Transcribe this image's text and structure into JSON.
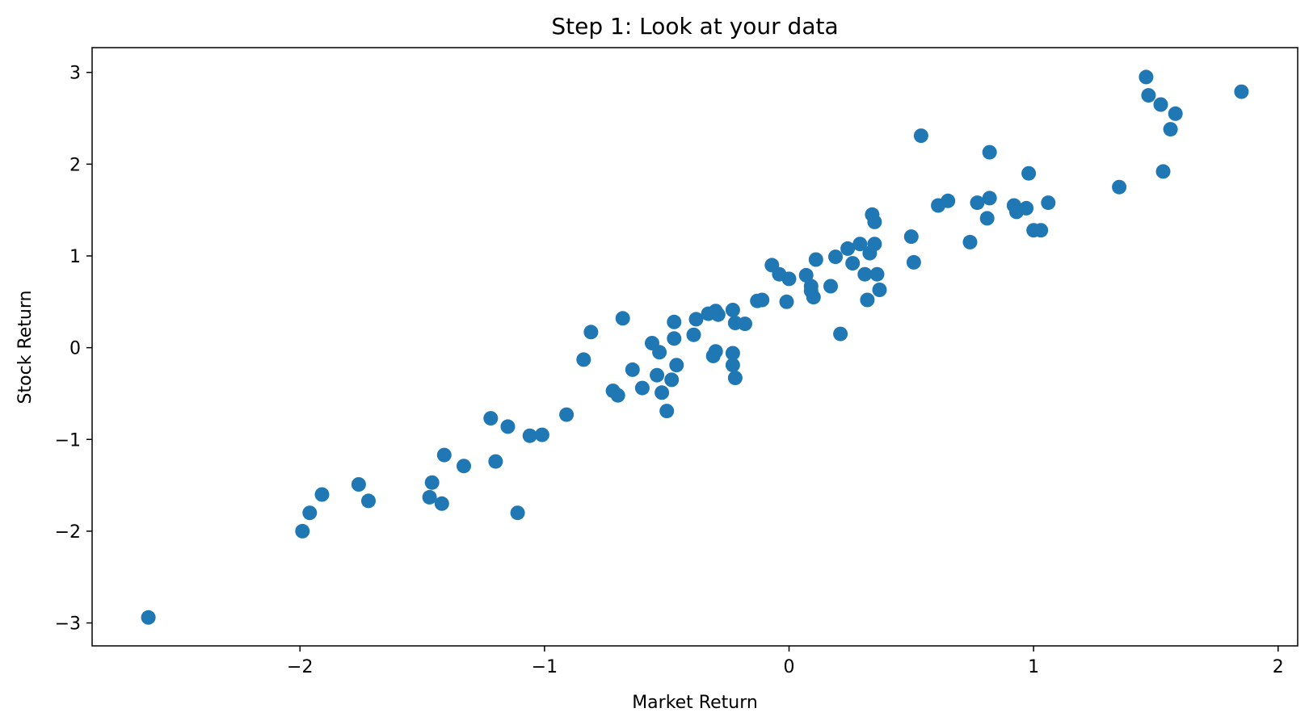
{
  "chart_data": {
    "type": "scatter",
    "title": "Step 1: Look at your data",
    "xlabel": "Market Return",
    "ylabel": "Stock Return",
    "xlim": [
      -2.85,
      2.08
    ],
    "ylim": [
      -3.25,
      3.27
    ],
    "x_ticks": [
      -2,
      -1,
      0,
      1,
      2
    ],
    "y_ticks": [
      -3,
      -2,
      -1,
      0,
      1,
      2,
      3
    ],
    "x_tick_labels": [
      "−2",
      "−1",
      "0",
      "1",
      "2"
    ],
    "y_tick_labels": [
      "−3",
      "−2",
      "−1",
      "0",
      "1",
      "2",
      "3"
    ],
    "grid": false,
    "legend": "none",
    "marker_color": "#1f77b4",
    "series": [
      {
        "points": [
          [
            -2.62,
            -2.94
          ],
          [
            -1.99,
            -2.0
          ],
          [
            -1.96,
            -1.8
          ],
          [
            -1.91,
            -1.6
          ],
          [
            -1.76,
            -1.49
          ],
          [
            -1.72,
            -1.67
          ],
          [
            -1.47,
            -1.63
          ],
          [
            -1.46,
            -1.47
          ],
          [
            -1.42,
            -1.7
          ],
          [
            -1.41,
            -1.17
          ],
          [
            -1.33,
            -1.29
          ],
          [
            -1.22,
            -0.77
          ],
          [
            -1.2,
            -1.24
          ],
          [
            -1.15,
            -0.86
          ],
          [
            -1.11,
            -1.8
          ],
          [
            -1.06,
            -0.96
          ],
          [
            -1.01,
            -0.95
          ],
          [
            -0.91,
            -0.73
          ],
          [
            -0.84,
            -0.13
          ],
          [
            -0.81,
            0.17
          ],
          [
            -0.72,
            -0.47
          ],
          [
            -0.7,
            -0.52
          ],
          [
            -0.68,
            0.32
          ],
          [
            -0.64,
            -0.24
          ],
          [
            -0.6,
            -0.44
          ],
          [
            -0.56,
            0.05
          ],
          [
            -0.54,
            -0.3
          ],
          [
            -0.53,
            -0.05
          ],
          [
            -0.52,
            -0.49
          ],
          [
            -0.5,
            -0.69
          ],
          [
            -0.48,
            -0.35
          ],
          [
            -0.47,
            0.1
          ],
          [
            -0.47,
            0.28
          ],
          [
            -0.46,
            -0.19
          ],
          [
            -0.39,
            0.14
          ],
          [
            -0.38,
            0.31
          ],
          [
            -0.33,
            0.37
          ],
          [
            -0.31,
            -0.09
          ],
          [
            -0.3,
            0.4
          ],
          [
            -0.3,
            -0.04
          ],
          [
            -0.29,
            0.36
          ],
          [
            -0.23,
            0.41
          ],
          [
            -0.23,
            -0.06
          ],
          [
            -0.23,
            -0.19
          ],
          [
            -0.22,
            0.27
          ],
          [
            -0.22,
            -0.33
          ],
          [
            -0.18,
            0.26
          ],
          [
            -0.13,
            0.51
          ],
          [
            -0.11,
            0.52
          ],
          [
            -0.07,
            0.9
          ],
          [
            -0.04,
            0.8
          ],
          [
            -0.01,
            0.5
          ],
          [
            0.0,
            0.75
          ],
          [
            0.07,
            0.79
          ],
          [
            0.09,
            0.67
          ],
          [
            0.09,
            0.62
          ],
          [
            0.1,
            0.55
          ],
          [
            0.11,
            0.96
          ],
          [
            0.17,
            0.67
          ],
          [
            0.19,
            0.99
          ],
          [
            0.21,
            0.15
          ],
          [
            0.24,
            1.08
          ],
          [
            0.26,
            0.92
          ],
          [
            0.29,
            1.13
          ],
          [
            0.31,
            0.8
          ],
          [
            0.32,
            0.52
          ],
          [
            0.33,
            1.03
          ],
          [
            0.34,
            1.45
          ],
          [
            0.35,
            1.13
          ],
          [
            0.35,
            1.37
          ],
          [
            0.36,
            0.8
          ],
          [
            0.37,
            0.63
          ],
          [
            0.5,
            1.21
          ],
          [
            0.51,
            0.93
          ],
          [
            0.54,
            2.31
          ],
          [
            0.61,
            1.55
          ],
          [
            0.65,
            1.6
          ],
          [
            0.74,
            1.15
          ],
          [
            0.77,
            1.58
          ],
          [
            0.81,
            1.41
          ],
          [
            0.82,
            1.63
          ],
          [
            0.82,
            2.13
          ],
          [
            0.92,
            1.55
          ],
          [
            0.93,
            1.48
          ],
          [
            0.97,
            1.52
          ],
          [
            0.98,
            1.9
          ],
          [
            1.0,
            1.28
          ],
          [
            1.03,
            1.28
          ],
          [
            1.06,
            1.58
          ],
          [
            1.35,
            1.75
          ],
          [
            1.46,
            2.95
          ],
          [
            1.47,
            2.75
          ],
          [
            1.52,
            2.65
          ],
          [
            1.53,
            1.92
          ],
          [
            1.56,
            2.38
          ],
          [
            1.58,
            2.55
          ],
          [
            1.85,
            2.79
          ]
        ]
      }
    ]
  }
}
